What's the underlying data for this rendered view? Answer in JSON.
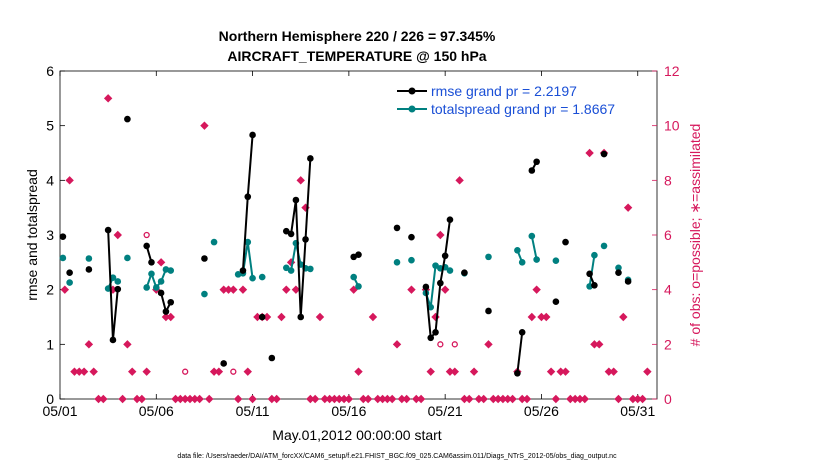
{
  "chart_data": {
    "type": "line",
    "title": "Northern Hemisphere 220 / 226 = 97.345%",
    "subtitle": "AIRCRAFT_TEMPERATURE @ 150 hPa",
    "xlabel": "May.01,2012 00:00:00 start",
    "ylabel_left": "rmse and totalspread",
    "ylabel_right": "# of obs: o=possible; ∗=assimilated",
    "footnote": "data file: /Users/raeder/DAI/ATM_forcXX/CAM6_setup/f.e21.FHIST_BGC.f09_025.CAM6assim.011/Diags_NTrS_2012-05/obs_diag_output.nc",
    "x_ticks": [
      {
        "day": 1,
        "label": "05/01"
      },
      {
        "day": 6,
        "label": "05/06"
      },
      {
        "day": 11,
        "label": "05/11"
      },
      {
        "day": 16,
        "label": "05/16"
      },
      {
        "day": 21,
        "label": "05/21"
      },
      {
        "day": 26,
        "label": "05/26"
      },
      {
        "day": 31,
        "label": "05/31"
      }
    ],
    "xlim": [
      1,
      32
    ],
    "ylim_left": [
      0,
      6
    ],
    "ylim_right": [
      0,
      12
    ],
    "yticks_left": [
      "0",
      "1",
      "2",
      "3",
      "4",
      "5",
      "6"
    ],
    "yticks_right": [
      "0",
      "2",
      "4",
      "6",
      "8",
      "10",
      "12"
    ],
    "legend_position": "top-right",
    "colors": {
      "rmse": "#000000",
      "spread": "#008080",
      "obs": "#d6185c"
    },
    "series": [
      {
        "name": "rmse grand pr = 2.2197",
        "axis": "left",
        "segments": [
          [
            [
              1.15,
              2.97
            ]
          ],
          [
            [
              1.5,
              2.31
            ]
          ],
          [
            [
              2.5,
              2.37
            ]
          ],
          [
            [
              3.5,
              3.09
            ],
            [
              3.75,
              1.08
            ],
            [
              4.0,
              2.01
            ]
          ],
          [
            [
              4.5,
              5.12
            ]
          ],
          [
            [
              5.5,
              2.8
            ],
            [
              5.75,
              2.5
            ]
          ],
          [
            [
              6.25,
              1.94
            ],
            [
              6.5,
              1.6
            ],
            [
              6.75,
              1.77
            ]
          ],
          [
            [
              8.5,
              2.57
            ]
          ],
          [
            [
              9.5,
              0.65
            ]
          ],
          [
            [
              10.5,
              2.35
            ],
            [
              10.75,
              3.7
            ],
            [
              11.0,
              4.83
            ]
          ],
          [
            [
              11.5,
              1.5
            ]
          ],
          [
            [
              12.0,
              0.75
            ]
          ],
          [
            [
              12.75,
              3.07
            ],
            [
              13.0,
              3.02
            ],
            [
              13.25,
              3.64
            ],
            [
              13.5,
              1.5
            ],
            [
              13.75,
              2.92
            ],
            [
              14.0,
              4.4
            ]
          ],
          [
            [
              16.25,
              2.6
            ],
            [
              16.5,
              2.64
            ]
          ],
          [
            [
              18.5,
              3.13
            ]
          ],
          [
            [
              19.25,
              2.96
            ]
          ],
          [
            [
              20.0,
              2.05
            ],
            [
              20.25,
              1.12
            ],
            [
              20.5,
              1.22
            ],
            [
              20.75,
              2.12
            ],
            [
              21.0,
              2.62
            ],
            [
              21.25,
              3.28
            ]
          ],
          [
            [
              22.0,
              2.31
            ]
          ],
          [
            [
              23.25,
              1.61
            ]
          ],
          [
            [
              24.75,
              0.47
            ],
            [
              25.0,
              1.22
            ]
          ],
          [
            [
              25.5,
              4.18
            ],
            [
              25.75,
              4.34
            ]
          ],
          [
            [
              26.75,
              1.78
            ]
          ],
          [
            [
              27.25,
              2.87
            ]
          ],
          [
            [
              28.5,
              2.29
            ],
            [
              28.75,
              2.08
            ]
          ],
          [
            [
              29.25,
              4.48
            ]
          ],
          [
            [
              30.0,
              2.31
            ]
          ],
          [
            [
              30.5,
              2.15
            ]
          ]
        ]
      },
      {
        "name": "totalspread grand pr = 1.8667",
        "axis": "left",
        "segments": [
          [
            [
              1.15,
              2.58
            ]
          ],
          [
            [
              1.5,
              2.13
            ]
          ],
          [
            [
              2.5,
              2.57
            ]
          ],
          [
            [
              3.5,
              2.02
            ],
            [
              3.75,
              2.22
            ],
            [
              4.0,
              2.15
            ]
          ],
          [
            [
              4.5,
              2.58
            ]
          ],
          [
            [
              5.5,
              2.04
            ],
            [
              5.75,
              2.29
            ],
            [
              6.0,
              2.04
            ],
            [
              6.25,
              2.15
            ],
            [
              6.5,
              2.37
            ],
            [
              6.75,
              2.35
            ]
          ],
          [
            [
              8.5,
              1.92
            ]
          ],
          [
            [
              9.0,
              2.87
            ]
          ],
          [
            [
              10.25,
              2.28
            ],
            [
              10.5,
              2.3
            ],
            [
              10.75,
              2.87
            ],
            [
              11.0,
              2.21
            ]
          ],
          [
            [
              11.5,
              2.23
            ]
          ],
          [
            [
              12.75,
              2.4
            ],
            [
              13.0,
              2.35
            ],
            [
              13.25,
              2.85
            ],
            [
              13.5,
              2.46
            ],
            [
              13.75,
              2.39
            ],
            [
              14.0,
              2.38
            ]
          ],
          [
            [
              16.25,
              2.23
            ],
            [
              16.5,
              2.06
            ]
          ],
          [
            [
              18.5,
              2.5
            ]
          ],
          [
            [
              19.25,
              2.54
            ]
          ],
          [
            [
              20.0,
              1.94
            ],
            [
              20.25,
              1.68
            ],
            [
              20.5,
              2.44
            ],
            [
              20.75,
              2.39
            ],
            [
              21.0,
              2.41
            ],
            [
              21.25,
              2.35
            ]
          ],
          [
            [
              22.0,
              2.3
            ]
          ],
          [
            [
              23.25,
              2.6
            ]
          ],
          [
            [
              24.75,
              2.72
            ],
            [
              25.0,
              2.5
            ]
          ],
          [
            [
              25.5,
              2.98
            ],
            [
              25.75,
              2.55
            ]
          ],
          [
            [
              26.75,
              2.53
            ]
          ],
          [
            [
              28.5,
              2.06
            ],
            [
              28.75,
              2.63
            ]
          ],
          [
            [
              29.25,
              2.8
            ]
          ],
          [
            [
              30.0,
              2.4
            ]
          ],
          [
            [
              30.5,
              2.18
            ]
          ]
        ]
      },
      {
        "name": "obs assimilated",
        "axis": "right",
        "points": [
          [
            1.25,
            4
          ],
          [
            1.5,
            8
          ],
          [
            1.75,
            1
          ],
          [
            2.0,
            1
          ],
          [
            2.25,
            1
          ],
          [
            2.5,
            2
          ],
          [
            2.75,
            1
          ],
          [
            3.0,
            0
          ],
          [
            3.25,
            0
          ],
          [
            3.5,
            11
          ],
          [
            3.75,
            4
          ],
          [
            4.0,
            6
          ],
          [
            4.25,
            0
          ],
          [
            4.5,
            2
          ],
          [
            4.75,
            1
          ],
          [
            5.0,
            0
          ],
          [
            5.25,
            0
          ],
          [
            5.5,
            1
          ],
          [
            6.0,
            4
          ],
          [
            6.25,
            5
          ],
          [
            6.5,
            3
          ],
          [
            6.75,
            3
          ],
          [
            7.0,
            0
          ],
          [
            7.25,
            0
          ],
          [
            7.5,
            0
          ],
          [
            7.75,
            0
          ],
          [
            8.0,
            0
          ],
          [
            8.25,
            0
          ],
          [
            8.5,
            10
          ],
          [
            8.75,
            0
          ],
          [
            9.0,
            1
          ],
          [
            9.25,
            1
          ],
          [
            9.5,
            4
          ],
          [
            9.75,
            4
          ],
          [
            10.0,
            4
          ],
          [
            10.25,
            0
          ],
          [
            10.5,
            4
          ],
          [
            10.75,
            1
          ],
          [
            11.0,
            0
          ],
          [
            11.25,
            3
          ],
          [
            11.5,
            3
          ],
          [
            11.75,
            3
          ],
          [
            12.0,
            0
          ],
          [
            12.25,
            0
          ],
          [
            12.5,
            3
          ],
          [
            12.75,
            4
          ],
          [
            13.0,
            5
          ],
          [
            13.25,
            4
          ],
          [
            13.5,
            8
          ],
          [
            13.75,
            7
          ],
          [
            14.0,
            0
          ],
          [
            14.25,
            0
          ],
          [
            14.5,
            3
          ],
          [
            14.75,
            0
          ],
          [
            15.0,
            0
          ],
          [
            15.25,
            0
          ],
          [
            15.5,
            0
          ],
          [
            15.75,
            0
          ],
          [
            16.0,
            0
          ],
          [
            16.25,
            4
          ],
          [
            16.5,
            1
          ],
          [
            16.75,
            0
          ],
          [
            17.0,
            0
          ],
          [
            17.25,
            3
          ],
          [
            17.5,
            0
          ],
          [
            17.75,
            0
          ],
          [
            18.0,
            0
          ],
          [
            18.25,
            0
          ],
          [
            18.5,
            2
          ],
          [
            18.75,
            0
          ],
          [
            19.0,
            0
          ],
          [
            19.25,
            4
          ],
          [
            19.5,
            0
          ],
          [
            19.75,
            0
          ],
          [
            20.0,
            4
          ],
          [
            20.25,
            1
          ],
          [
            20.5,
            3
          ],
          [
            20.75,
            6
          ],
          [
            21.0,
            4
          ],
          [
            21.25,
            1
          ],
          [
            21.5,
            1
          ],
          [
            21.75,
            8
          ],
          [
            22.0,
            0
          ],
          [
            22.25,
            0
          ],
          [
            22.5,
            1
          ],
          [
            22.75,
            0
          ],
          [
            23.0,
            0
          ],
          [
            23.25,
            2
          ],
          [
            23.5,
            0
          ],
          [
            23.75,
            0
          ],
          [
            24.0,
            0
          ],
          [
            24.25,
            0
          ],
          [
            24.5,
            0
          ],
          [
            24.75,
            1
          ],
          [
            25.0,
            0
          ],
          [
            25.25,
            0
          ],
          [
            25.5,
            3
          ],
          [
            25.75,
            4
          ],
          [
            26.0,
            3
          ],
          [
            26.25,
            3
          ],
          [
            26.5,
            1
          ],
          [
            26.75,
            0
          ],
          [
            27.0,
            1
          ],
          [
            27.25,
            1
          ],
          [
            27.5,
            0
          ],
          [
            27.75,
            0
          ],
          [
            28.0,
            0
          ],
          [
            28.25,
            0
          ],
          [
            28.5,
            9
          ],
          [
            28.75,
            2
          ],
          [
            29.0,
            2
          ],
          [
            29.25,
            9
          ],
          [
            29.5,
            1
          ],
          [
            29.75,
            1
          ],
          [
            30.0,
            0
          ],
          [
            30.25,
            3
          ],
          [
            30.5,
            7
          ],
          [
            30.75,
            0
          ],
          [
            31.0,
            0
          ],
          [
            31.25,
            0
          ],
          [
            31.5,
            1
          ]
        ]
      },
      {
        "name": "obs possible",
        "axis": "right",
        "points": [
          [
            5.5,
            6
          ],
          [
            7.5,
            1
          ],
          [
            10.0,
            1
          ],
          [
            20.75,
            2
          ],
          [
            21.5,
            2
          ]
        ]
      }
    ]
  }
}
